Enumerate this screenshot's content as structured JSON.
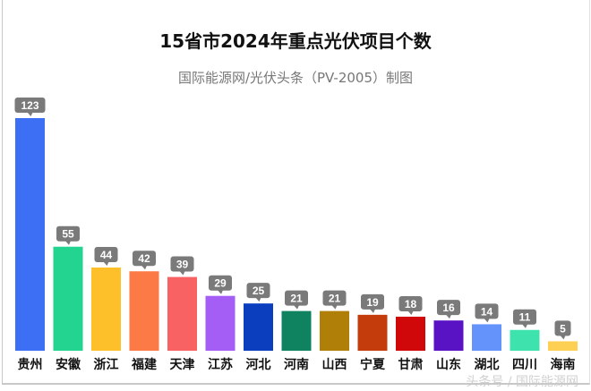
{
  "chart_data": {
    "type": "bar",
    "title": "15省市2024年重点光伏项目个数",
    "subtitle": "国际能源网/光伏头条（PV-2005）制图",
    "categories": [
      "贵州",
      "安徽",
      "浙江",
      "福建",
      "天津",
      "江苏",
      "河北",
      "河南",
      "山西",
      "宁夏",
      "甘肃",
      "山东",
      "湖北",
      "四川",
      "海南"
    ],
    "values": [
      123,
      55,
      44,
      42,
      39,
      29,
      25,
      21,
      21,
      19,
      18,
      16,
      14,
      11,
      5
    ],
    "colors": [
      "#3d6ff5",
      "#22d48f",
      "#fdc02b",
      "#fb7a45",
      "#f86262",
      "#a55ef5",
      "#0a3ebf",
      "#0f8360",
      "#b07f08",
      "#c43c0b",
      "#d0080a",
      "#5a12c5",
      "#6494fb",
      "#3ee2ad",
      "#fdd054"
    ],
    "label_bg": "#7a7a7a",
    "xlabel": "",
    "ylabel": "",
    "ylim": [
      0,
      123
    ],
    "grid": false,
    "legend": "none"
  },
  "watermark": "头条号 / 国际能源网"
}
